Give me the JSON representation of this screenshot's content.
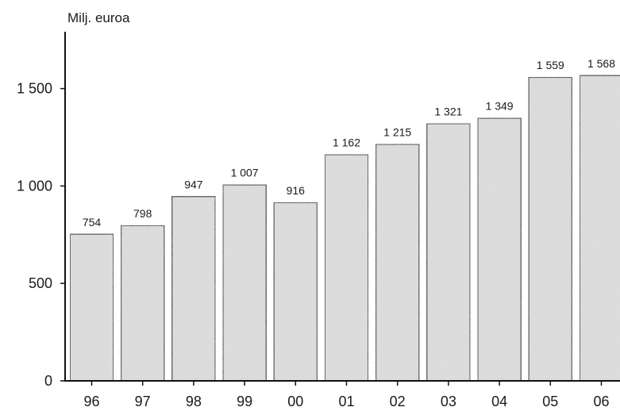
{
  "chart_data": {
    "type": "bar",
    "title": "",
    "ylabel": "Milj. euroa",
    "xlabel": "",
    "categories": [
      "96",
      "97",
      "98",
      "99",
      "00",
      "01",
      "02",
      "03",
      "04",
      "05",
      "06"
    ],
    "values": [
      754,
      798,
      947,
      1007,
      916,
      1162,
      1215,
      1321,
      1349,
      1559,
      1568
    ],
    "value_labels": [
      "754",
      "798",
      "947",
      "1 007",
      "916",
      "1 162",
      "1 215",
      "1 321",
      "1 349",
      "1 559",
      "1 568"
    ],
    "yticks": [
      0,
      500,
      1000,
      1500
    ],
    "ytick_labels": [
      "0",
      "500",
      "1 000",
      "1 500"
    ],
    "ylim": [
      0,
      1800
    ],
    "grid": false,
    "bar_color": "#e4e4e4",
    "bar_edge_color": "#111111"
  }
}
